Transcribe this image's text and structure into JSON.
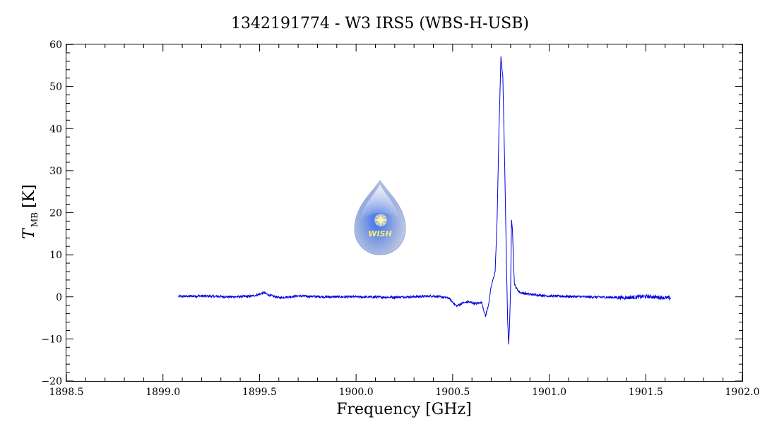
{
  "chart_data": {
    "type": "line",
    "title": "1342191774 - W3 IRS5 (WBS-H-USB)",
    "xlabel": "Frequency [GHz]",
    "ylabel_main": "T",
    "ylabel_sub": "MB",
    "ylabel_unit": "[K]",
    "xlim": [
      1898.5,
      1902.0
    ],
    "ylim": [
      -20,
      60
    ],
    "x_ticks": [
      "1898.5",
      "1899.0",
      "1899.5",
      "1900.0",
      "1900.5",
      "1901.0",
      "1901.5",
      "1902.0"
    ],
    "y_ticks": [
      "60",
      "50",
      "40",
      "30",
      "20",
      "10",
      "0",
      "-10",
      "-20"
    ],
    "grid": false,
    "series_color": "#0000e0",
    "series": [
      {
        "x": [
          1899.08,
          1899.2,
          1899.35,
          1899.45,
          1899.5,
          1899.52,
          1899.55,
          1899.6,
          1899.7,
          1899.85,
          1900.0,
          1900.2,
          1900.4,
          1900.48,
          1900.52,
          1900.55,
          1900.58,
          1900.62,
          1900.65,
          1900.67,
          1900.685,
          1900.7,
          1900.72,
          1900.73,
          1900.74,
          1900.75,
          1900.76,
          1900.77,
          1900.78,
          1900.785,
          1900.79,
          1900.795,
          1900.8,
          1900.805,
          1900.81,
          1900.815,
          1900.82,
          1900.83,
          1900.85,
          1900.9,
          1901.0,
          1901.2,
          1901.4,
          1901.5,
          1901.63
        ],
        "y": [
          0.1,
          0.2,
          0.0,
          0.1,
          0.6,
          1.0,
          0.4,
          -0.2,
          0.2,
          0.0,
          0.0,
          -0.1,
          0.2,
          -0.3,
          -2.2,
          -1.5,
          -1.2,
          -1.6,
          -1.3,
          -4.6,
          -2.0,
          2.5,
          6.0,
          18.0,
          40.0,
          57.0,
          52.0,
          30.0,
          5.0,
          -6.0,
          -11.5,
          -6.0,
          2.0,
          18.5,
          16.0,
          8.0,
          3.0,
          2.0,
          1.0,
          0.6,
          0.2,
          0.0,
          -0.2,
          0.1,
          -0.3
        ]
      }
    ]
  },
  "logo": {
    "text": "WISH"
  }
}
